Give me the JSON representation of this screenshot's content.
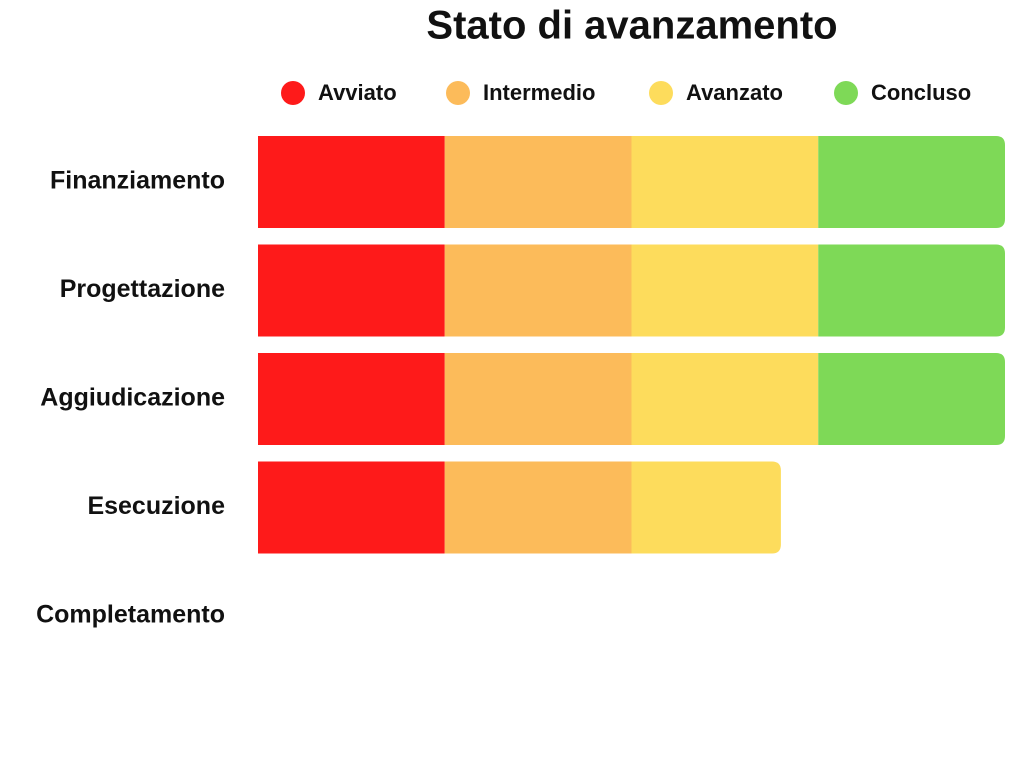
{
  "chart_data": {
    "type": "stacked-bar-horizontal",
    "title": "Stato di avanzamento",
    "categories": [
      "Finanziamento",
      "Progettazione",
      "Aggiudicazione",
      "Esecuzione",
      "Completamento"
    ],
    "xlim": [
      0,
      100
    ],
    "series": [
      {
        "name": "Avviato",
        "color": "#fe1a1a",
        "values": [
          25,
          25,
          25,
          25,
          0
        ]
      },
      {
        "name": "Intermedio",
        "color": "#fcbb5a",
        "values": [
          25,
          25,
          25,
          25,
          0
        ]
      },
      {
        "name": "Avanzato",
        "color": "#fddc5c",
        "values": [
          25,
          25,
          25,
          20,
          0
        ]
      },
      {
        "name": "Concluso",
        "color": "#7ed957",
        "values": [
          25,
          25,
          25,
          0,
          0
        ]
      }
    ]
  }
}
